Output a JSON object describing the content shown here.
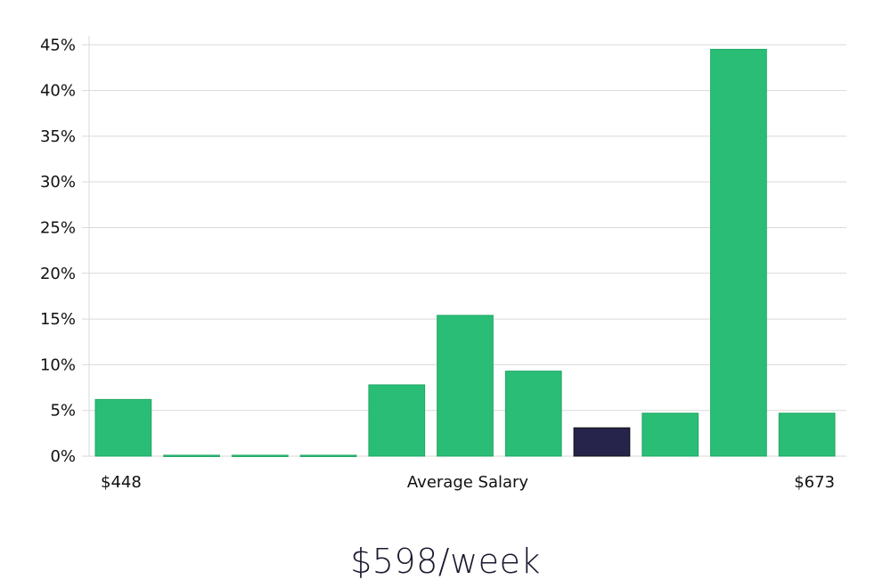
{
  "headline": "$598/week",
  "colors": {
    "bar": "#2abd76",
    "highlight": "#26244a",
    "grid": "#d9d9d9",
    "text": "#111111"
  },
  "chart_data": {
    "type": "bar",
    "title": "",
    "xlabel": "Average Salary",
    "ylabel": "",
    "x_min_label": "$448",
    "x_max_label": "$673",
    "y_tick_labels": [
      "0%",
      "5%",
      "10%",
      "15%",
      "20%",
      "25%",
      "30%",
      "35%",
      "40%",
      "45%"
    ],
    "ylim": [
      0,
      46
    ],
    "values": [
      6.2,
      0.1,
      0.1,
      0.1,
      7.8,
      15.4,
      9.3,
      3.1,
      4.7,
      44.5,
      4.7
    ],
    "highlight_index": 7,
    "grid": true
  }
}
